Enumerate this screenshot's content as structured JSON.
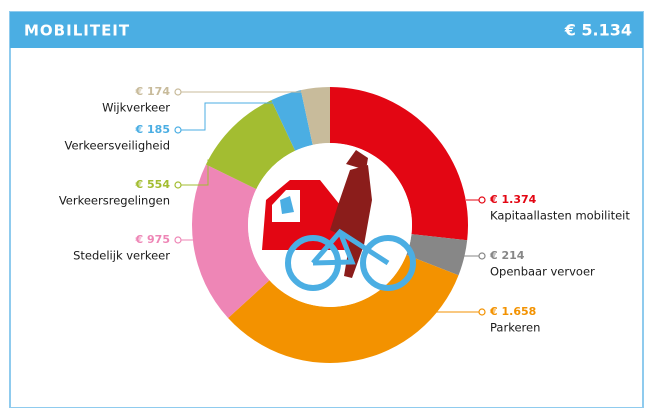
{
  "chart_data": {
    "type": "donut",
    "title": "MOBILITEIT",
    "total": "€ 5.134",
    "categories": [
      "Kapitaallasten mobiliteit",
      "Openbaar vervoer",
      "Parkeren",
      "Stedelijk verkeer",
      "Verkeersregelingen",
      "Verkeersveiligheid",
      "Wijkverkeer"
    ],
    "values": [
      1374,
      214,
      1658,
      975,
      554,
      185,
      174
    ],
    "value_labels": [
      "€ 1.374",
      "€ 214",
      "€ 1.658",
      "€ 975",
      "€ 554",
      "€ 185",
      "€ 174"
    ],
    "colors": [
      "#e30613",
      "#878787",
      "#f39200",
      "#ee86b6",
      "#a3bd31",
      "#4baee3",
      "#c8bb9b"
    ]
  }
}
